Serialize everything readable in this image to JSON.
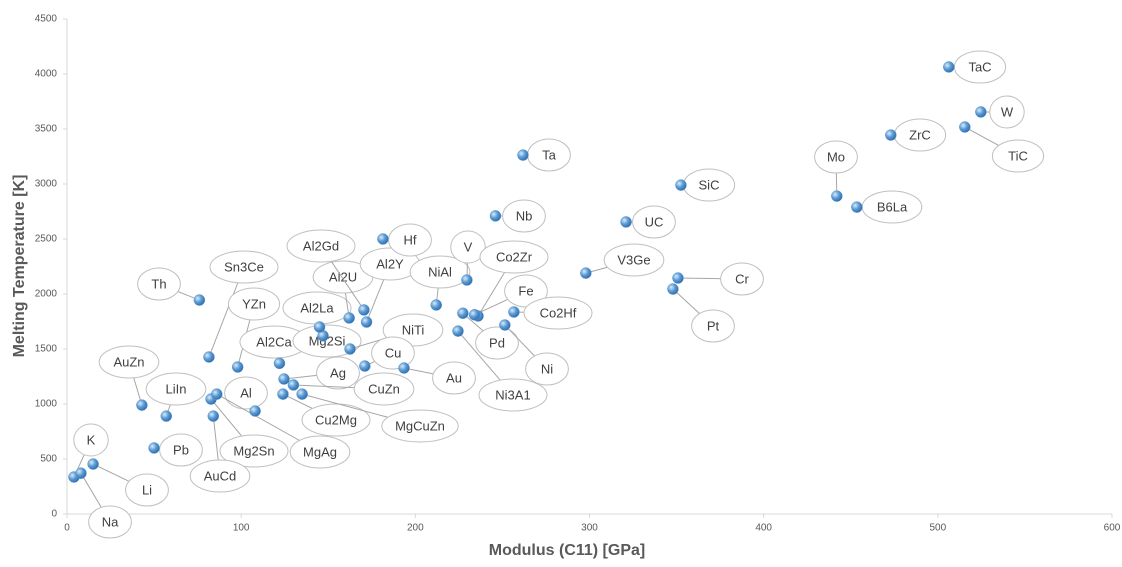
{
  "chart_data": {
    "type": "scatter",
    "xlabel": "Modulus  (C11) [GPa]",
    "ylabel": "Melting Temperature  [K]",
    "labels": [
      "K",
      "Na",
      "Li",
      "Pb",
      "LiIn",
      "AuZn",
      "Th",
      "Sn3Ce",
      "YZn",
      "Al2Ca",
      "Al",
      "Mg2Sn",
      "AuCd",
      "MgAg",
      "Cu2Mg",
      "Ag",
      "CuZn",
      "MgCuZn",
      "Mg2Si",
      "Al2La",
      "Al2U",
      "Al2Gd",
      "Al2Y",
      "Hf",
      "NiAl",
      "NiTi",
      "Cu",
      "Au",
      "Ta",
      "Nb",
      "V",
      "Co2Zr",
      "Fe",
      "Pd",
      "Co2Hf",
      "Ni",
      "Ni3A1",
      "V3Ge",
      "UC",
      "SiC",
      "Cr",
      "Pt",
      "Mo",
      "B6La",
      "ZrC",
      "TaC",
      "W",
      "TiC"
    ],
    "x": [
      4,
      8,
      15,
      50,
      57,
      43,
      76,
      81.5,
      98,
      122,
      108,
      82.7,
      84,
      86,
      124,
      124.6,
      130,
      135,
      147,
      145,
      162,
      170.5,
      172,
      181.4,
      212,
      162.5,
      171,
      193.5,
      261.8,
      246,
      229.6,
      236,
      234,
      227.3,
      256.6,
      251.4,
      224.5,
      297.9,
      321,
      352.5,
      350.8,
      347.9,
      442,
      453.5,
      473,
      506.3,
      524.7,
      515.5
    ],
    "values": [
      336,
      371,
      454,
      600,
      890,
      990,
      1945,
      1427,
      1336,
      1370,
      936,
      1045,
      890,
      1090,
      1090,
      1227,
      1173,
      1090,
      1620,
      1700,
      1782,
      1855,
      1745,
      2500,
      1900,
      1500,
      1345,
      1327,
      3263,
      2710,
      2127,
      1800,
      1811,
      1825,
      1836,
      1718,
      1663,
      2190,
      2655,
      2990,
      2145,
      2045,
      2890,
      2790,
      3445,
      4064,
      3655,
      3518
    ],
    "color": "#5b9bd5",
    "xlim": [
      0,
      600
    ],
    "xticks": [
      0,
      100,
      200,
      300,
      400,
      500,
      600
    ],
    "ylim": [
      0,
      4500
    ],
    "yticks": [
      0,
      500,
      1000,
      1500,
      2000,
      2500,
      3000,
      3500,
      4000,
      4500
    ],
    "grid": false
  }
}
